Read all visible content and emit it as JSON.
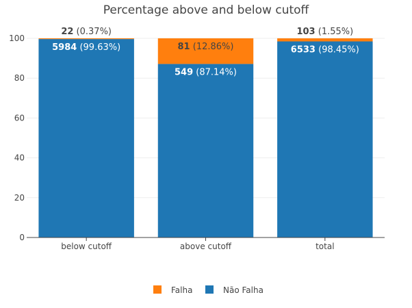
{
  "chart_data": {
    "type": "bar",
    "stacked": true,
    "title": "Percentage above and below cutoff",
    "xlabel": "",
    "ylabel": "",
    "ylim": [
      0,
      100
    ],
    "yticks": [
      "0",
      "20",
      "40",
      "60",
      "80",
      "100"
    ],
    "grid": true,
    "legend_position": "bottom-center",
    "categories": [
      "below cutoff",
      "above cutoff",
      "total"
    ],
    "series": [
      {
        "name": "Não Falha",
        "color": "#1f77b4",
        "values": [
          99.63,
          87.14,
          98.45
        ],
        "counts": [
          "5984",
          "549",
          "6533"
        ],
        "pct_labels": [
          "(99.63%)",
          "(87.14%)",
          "(98.45%)"
        ]
      },
      {
        "name": "Falha",
        "color": "#ff7f0e",
        "values": [
          0.37,
          12.86,
          1.55
        ],
        "counts": [
          "22",
          "81",
          "103"
        ],
        "pct_labels": [
          "(0.37%)",
          "(12.86%)",
          "(1.55%)"
        ]
      }
    ],
    "legend": [
      {
        "name": "Falha",
        "color": "#ff7f0e"
      },
      {
        "name": "Não Falha",
        "color": "#1f77b4"
      }
    ]
  }
}
